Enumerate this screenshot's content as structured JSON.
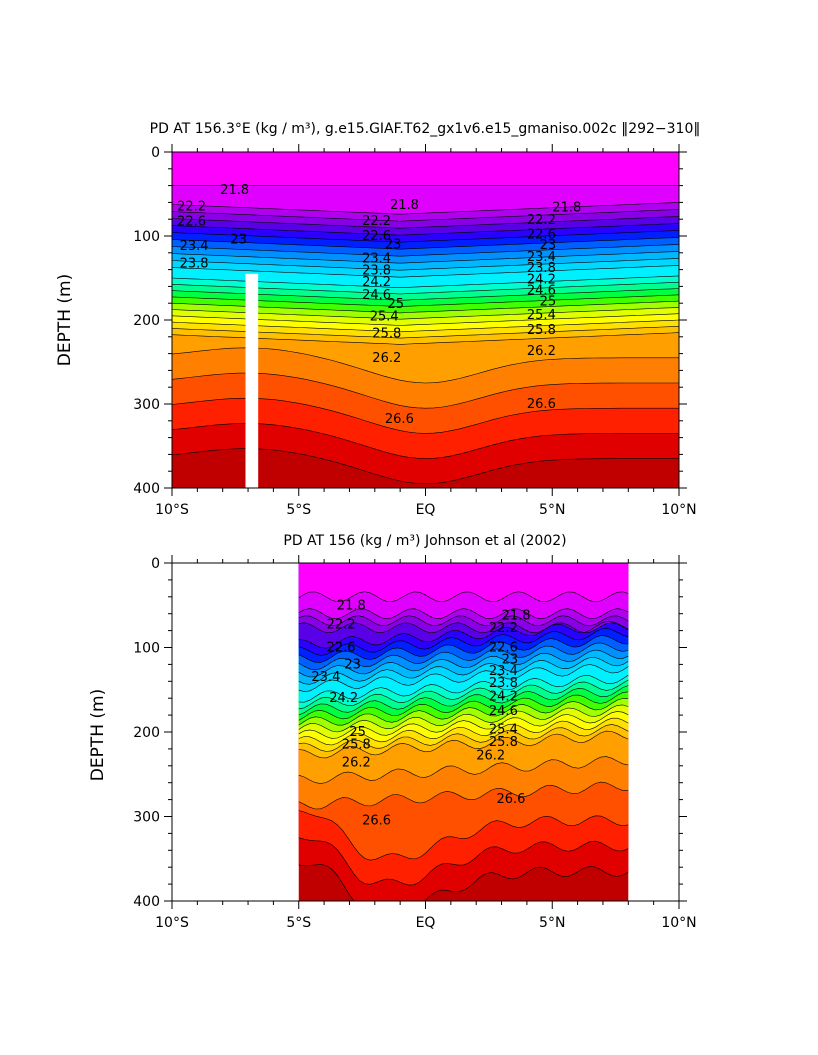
{
  "chart_data": [
    {
      "id": "top",
      "type": "contour",
      "title": "PD AT 156.3°E (kg / m³), g.e15.GIAF.T62_gx1v6.e15_gmaniso.002c ‖292−310‖",
      "ylabel": "DEPTH (m)",
      "xlabel": "",
      "x_tick_labels": [
        "10°S",
        "5°S",
        "EQ",
        "5°N",
        "10°N"
      ],
      "x_ticks": [
        -10,
        -5,
        0,
        5,
        10
      ],
      "y_tick_labels": [
        "0",
        "100",
        "200",
        "300",
        "400"
      ],
      "y_ticks": [
        0,
        100,
        200,
        300,
        400
      ],
      "xlim": [
        -10,
        10
      ],
      "ylim": [
        400,
        0
      ],
      "data_extent": [
        -10,
        10
      ],
      "missing_band": [
        -7.1,
        -6.6,
        145,
        400
      ],
      "contour_labels": [
        {
          "text": "21.8",
          "x": -8.1,
          "y": 45
        },
        {
          "text": "22.2",
          "x": -9.8,
          "y": 65
        },
        {
          "text": "22.6",
          "x": -9.8,
          "y": 83
        },
        {
          "text": "23",
          "x": -7.7,
          "y": 104
        },
        {
          "text": "23.4",
          "x": -9.7,
          "y": 112
        },
        {
          "text": "23.8",
          "x": -9.7,
          "y": 133
        },
        {
          "text": "21.8",
          "x": -1.4,
          "y": 63
        },
        {
          "text": "22.2",
          "x": -2.5,
          "y": 82
        },
        {
          "text": "22.6",
          "x": -2.5,
          "y": 100
        },
        {
          "text": "23",
          "x": -1.6,
          "y": 110
        },
        {
          "text": "23.4",
          "x": -2.5,
          "y": 127
        },
        {
          "text": "23.8",
          "x": -2.5,
          "y": 141
        },
        {
          "text": "24.2",
          "x": -2.5,
          "y": 155
        },
        {
          "text": "24.6",
          "x": -2.5,
          "y": 170
        },
        {
          "text": "25",
          "x": -1.5,
          "y": 181
        },
        {
          "text": "25.4",
          "x": -2.2,
          "y": 196
        },
        {
          "text": "25.8",
          "x": -2.1,
          "y": 216
        },
        {
          "text": "26.2",
          "x": -2.1,
          "y": 245
        },
        {
          "text": "26.6",
          "x": -1.6,
          "y": 318
        },
        {
          "text": "21.8",
          "x": 5.0,
          "y": 66
        },
        {
          "text": "22.2",
          "x": 4.0,
          "y": 81
        },
        {
          "text": "22.6",
          "x": 4.0,
          "y": 98
        },
        {
          "text": "23",
          "x": 4.5,
          "y": 111
        },
        {
          "text": "23.4",
          "x": 4.0,
          "y": 125
        },
        {
          "text": "23.8",
          "x": 4.0,
          "y": 138
        },
        {
          "text": "24.2",
          "x": 4.0,
          "y": 152
        },
        {
          "text": "24.6",
          "x": 4.0,
          "y": 165
        },
        {
          "text": "25",
          "x": 4.5,
          "y": 178
        },
        {
          "text": "25.4",
          "x": 4.0,
          "y": 194
        },
        {
          "text": "25.8",
          "x": 4.0,
          "y": 212
        },
        {
          "text": "26.2",
          "x": 4.0,
          "y": 237
        },
        {
          "text": "26.6",
          "x": 4.0,
          "y": 300
        }
      ]
    },
    {
      "id": "bottom",
      "type": "contour",
      "title": "PD AT 156 (kg / m³) Johnson et al (2002)",
      "ylabel": "DEPTH (m)",
      "xlabel": "",
      "x_tick_labels": [
        "10°S",
        "5°S",
        "EQ",
        "5°N",
        "10°N"
      ],
      "x_ticks": [
        -10,
        -5,
        0,
        5,
        10
      ],
      "y_tick_labels": [
        "0",
        "100",
        "200",
        "300",
        "400"
      ],
      "y_ticks": [
        0,
        100,
        200,
        300,
        400
      ],
      "xlim": [
        -10,
        10
      ],
      "ylim": [
        400,
        0
      ],
      "data_extent": [
        -5,
        8
      ],
      "contour_labels": [
        {
          "text": "21.8",
          "x": -3.5,
          "y": 50
        },
        {
          "text": "22.2",
          "x": -3.9,
          "y": 73
        },
        {
          "text": "22.6",
          "x": -3.9,
          "y": 100
        },
        {
          "text": "23",
          "x": -3.2,
          "y": 120
        },
        {
          "text": "23.4",
          "x": -4.5,
          "y": 135
        },
        {
          "text": "24.2",
          "x": -3.8,
          "y": 160
        },
        {
          "text": "25",
          "x": -3.0,
          "y": 200
        },
        {
          "text": "25.8",
          "x": -3.3,
          "y": 215
        },
        {
          "text": "26.2",
          "x": -3.3,
          "y": 236
        },
        {
          "text": "26.6",
          "x": -2.5,
          "y": 305
        },
        {
          "text": "21.8",
          "x": 3.0,
          "y": 62
        },
        {
          "text": "22.2",
          "x": 2.5,
          "y": 77
        },
        {
          "text": "22.6",
          "x": 2.5,
          "y": 100
        },
        {
          "text": "23",
          "x": 3.0,
          "y": 114
        },
        {
          "text": "23.4",
          "x": 2.5,
          "y": 128
        },
        {
          "text": "23.8",
          "x": 2.5,
          "y": 142
        },
        {
          "text": "24.2",
          "x": 2.5,
          "y": 158
        },
        {
          "text": "24.6",
          "x": 2.5,
          "y": 175
        },
        {
          "text": "25.4",
          "x": 2.5,
          "y": 197
        },
        {
          "text": "25.8",
          "x": 2.5,
          "y": 212
        },
        {
          "text": "26.2",
          "x": 2.0,
          "y": 228
        },
        {
          "text": "26.6",
          "x": 2.8,
          "y": 279
        }
      ]
    }
  ],
  "levels": [
    21.8,
    22.0,
    22.2,
    22.4,
    22.6,
    22.8,
    23.0,
    23.2,
    23.4,
    23.6,
    23.8,
    24.0,
    24.2,
    24.4,
    24.6,
    24.8,
    25.0,
    25.2,
    25.4,
    25.6,
    25.8,
    26.0,
    26.2,
    26.4,
    26.6,
    26.8
  ],
  "level_colors": [
    "#ff00ff",
    "#e000ff",
    "#b000f0",
    "#8a00e6",
    "#5a00e6",
    "#2a00ff",
    "#0020ff",
    "#0060ff",
    "#0090ff",
    "#00b8ff",
    "#00d8ff",
    "#00f0ff",
    "#00ffd0",
    "#00ff90",
    "#00ff40",
    "#40ff00",
    "#a0ff00",
    "#e0ff00",
    "#ffff00",
    "#ffe000",
    "#ffc000",
    "#ffa000",
    "#ff8000",
    "#ff5000",
    "#ff2000",
    "#e00000",
    "#c00000"
  ],
  "missing_color": "#c0c0c0"
}
